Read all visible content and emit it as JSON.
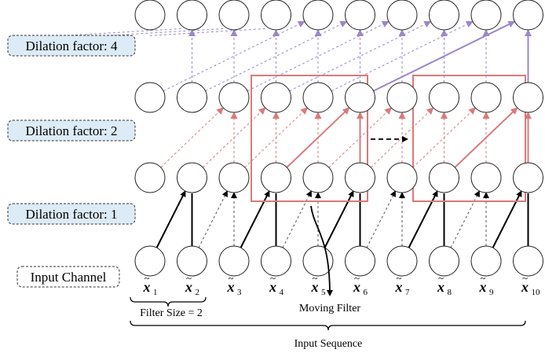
{
  "layer_labels": {
    "dilation_4": "Dilation factor: 4",
    "dilation_2": "Dilation factor: 2",
    "dilation_1": "Dilation factor: 1",
    "input": "Input Channel"
  },
  "input_symbols": [
    {
      "base": "x",
      "sub": "1"
    },
    {
      "base": "x",
      "sub": "2"
    },
    {
      "base": "x",
      "sub": "3"
    },
    {
      "base": "x",
      "sub": "4"
    },
    {
      "base": "x",
      "sub": "5"
    },
    {
      "base": "x",
      "sub": "6"
    },
    {
      "base": "x",
      "sub": "7"
    },
    {
      "base": "x",
      "sub": "8"
    },
    {
      "base": "x",
      "sub": "9"
    },
    {
      "base": "x",
      "sub": "10"
    }
  ],
  "annotations": {
    "filter_size": "Filter Size = 2",
    "moving_filter": "Moving Filter",
    "input_sequence": "Input Sequence"
  },
  "colors": {
    "label_box_fill": "#dcebf5",
    "red": "#d97a7a",
    "purple": "#9b87c8",
    "black": "#000000",
    "grey_dash": "#555555"
  }
}
